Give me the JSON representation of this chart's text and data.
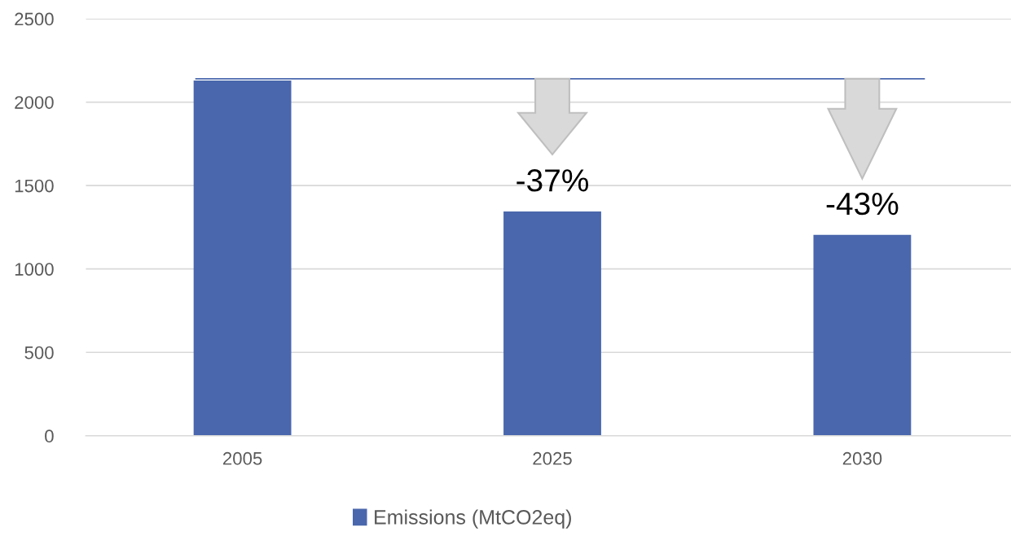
{
  "chart_data": {
    "type": "bar",
    "categories": [
      "2005",
      "2025",
      "2030"
    ],
    "series": [
      {
        "name": "Emissions (MtCO2eq)",
        "color": "#4a67ad",
        "values": [
          2130,
          1345,
          1205
        ]
      }
    ],
    "ylim": [
      0,
      2500
    ],
    "yticks": [
      0,
      500,
      1000,
      1500,
      2000,
      2500
    ],
    "grid": "y",
    "legend": "bottom",
    "ref_lines": [
      {
        "axis": "y",
        "value": 2140,
        "color": "#4a67ad"
      }
    ],
    "annotations": [
      {
        "text": "-37%",
        "x": "2025",
        "y": 1345
      },
      {
        "text": "-43%",
        "x": "2030",
        "y": 1205
      }
    ]
  }
}
